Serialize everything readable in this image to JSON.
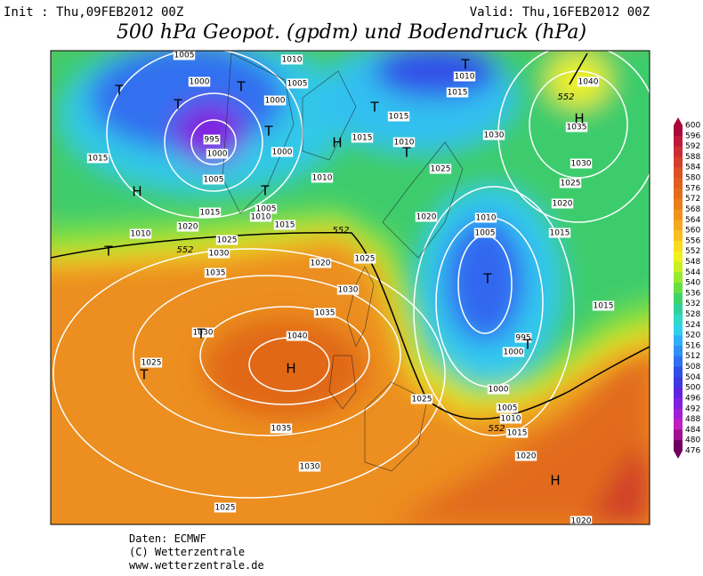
{
  "header": {
    "init": "Init : Thu,09FEB2012 00Z",
    "valid": "Valid: Thu,16FEB2012 00Z",
    "title": "500 hPa Geopot. (gpdm) und Bodendruck (hPa)"
  },
  "map": {
    "isobar_labels": [
      "1005",
      "1010",
      "1000",
      "1005",
      "1000",
      "995",
      "1000",
      "1000",
      "1015",
      "1010",
      "1005",
      "1015",
      "1005",
      "1010",
      "1015",
      "1010",
      "1020",
      "1025",
      "1030",
      "1015",
      "1015",
      "1010",
      "1010",
      "1015",
      "1030",
      "1025",
      "1020",
      "1010",
      "1005",
      "1015",
      "1025",
      "1030",
      "1020",
      "1035",
      "1040",
      "1015",
      "1020",
      "1025",
      "1030",
      "1035",
      "1035",
      "1040",
      "1030",
      "1025",
      "1035",
      "1030",
      "1025",
      "1025",
      "995",
      "1000",
      "1000",
      "1005",
      "1010",
      "1015",
      "1020",
      "1020"
    ],
    "geopotential_labels": [
      "552",
      "552",
      "552",
      "552"
    ],
    "pressure_centers": [
      "T",
      "T",
      "T",
      "T",
      "H",
      "T",
      "T",
      "T",
      "H",
      "H",
      "T",
      "T",
      "T",
      "H",
      "T",
      "T",
      "T",
      "H"
    ]
  },
  "legend": {
    "levels": [
      "600",
      "596",
      "592",
      "588",
      "584",
      "580",
      "576",
      "572",
      "568",
      "564",
      "560",
      "556",
      "552",
      "548",
      "544",
      "540",
      "536",
      "532",
      "528",
      "524",
      "520",
      "516",
      "512",
      "508",
      "504",
      "500",
      "496",
      "492",
      "488",
      "484",
      "480",
      "476"
    ],
    "colors": [
      "#a8083a",
      "#c01838",
      "#cc2c34",
      "#d43e2c",
      "#dc5024",
      "#e05e1e",
      "#e46c1a",
      "#ea7e18",
      "#f0921c",
      "#f4a820",
      "#f8c020",
      "#f8dc20",
      "#f0f020",
      "#c8f024",
      "#98e830",
      "#64e040",
      "#40d468",
      "#30d098",
      "#30d8c8",
      "#30d0ec",
      "#30b0f8",
      "#3090f8",
      "#3070f4",
      "#3050e8",
      "#4038e0",
      "#6024e0",
      "#8020e0",
      "#a020d4",
      "#c020c0",
      "#a01090",
      "#700060"
    ]
  },
  "footer": {
    "source": "Daten: ECMWF",
    "copyright": "(C) Wetterzentrale",
    "url": "www.wetterzentrale.de"
  }
}
